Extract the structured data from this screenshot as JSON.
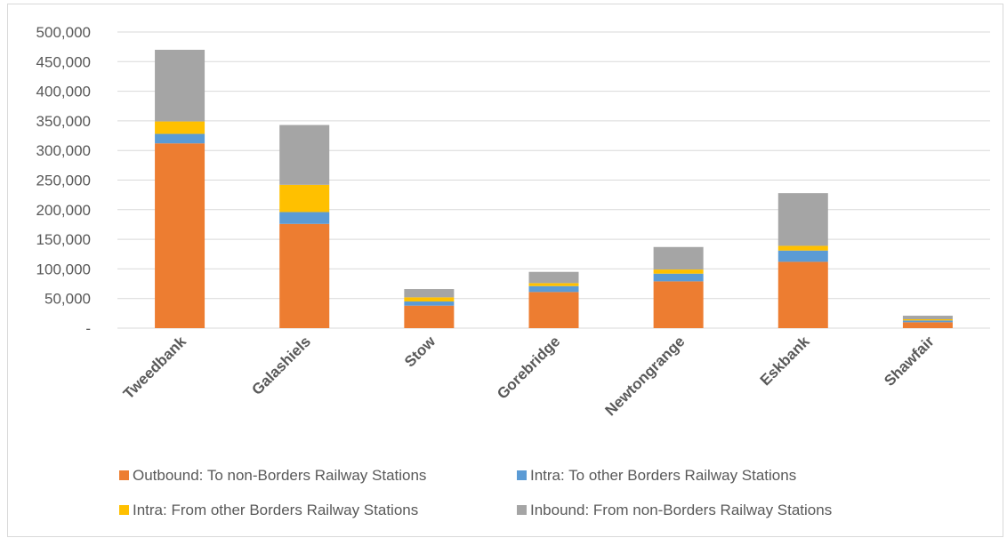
{
  "chart_data": {
    "type": "bar",
    "stacked": true,
    "categories": [
      "Tweedbank",
      "Galashiels",
      "Stow",
      "Gorebridge",
      "Newtongrange",
      "Eskbank",
      "Shawfair"
    ],
    "series": [
      {
        "name": "Outbound: To non-Borders Railway Stations",
        "color": "#ED7D31",
        "values": [
          312000,
          176000,
          38000,
          61000,
          79000,
          112000,
          10000
        ]
      },
      {
        "name": "Intra: To other Borders Railway Stations",
        "color": "#5B9BD5",
        "values": [
          16000,
          20000,
          7000,
          10000,
          13000,
          19000,
          3000
        ]
      },
      {
        "name": "Intra: From other Borders Railway Stations",
        "color": "#FFC000",
        "values": [
          21000,
          46000,
          7000,
          5000,
          7000,
          8000,
          2000
        ]
      },
      {
        "name": "Inbound: From non-Borders Railway Stations",
        "color": "#A5A5A5",
        "values": [
          121000,
          101000,
          14000,
          19000,
          38000,
          89000,
          6000
        ]
      }
    ],
    "ylim": [
      0,
      500000
    ],
    "yticks": [
      0,
      50000,
      100000,
      150000,
      200000,
      250000,
      300000,
      350000,
      400000,
      450000,
      500000
    ],
    "ytick_labels": [
      "-",
      "50,000",
      "100,000",
      "150,000",
      "200,000",
      "250,000",
      "300,000",
      "350,000",
      "400,000",
      "450,000",
      "500,000"
    ],
    "grid": true,
    "legend_position": "bottom",
    "gridline_color": "#d9d9d9"
  }
}
